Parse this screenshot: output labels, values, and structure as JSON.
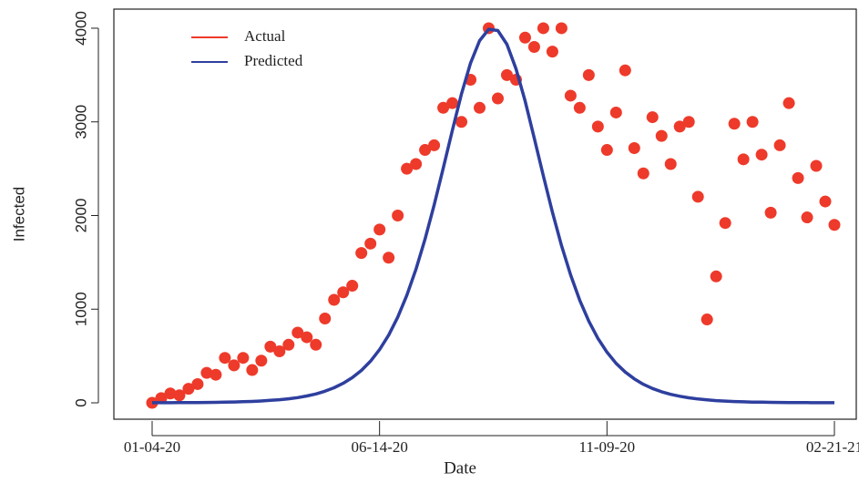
{
  "chart_data": {
    "type": "scatter-line",
    "x_label": "Date",
    "y_label": "Infected",
    "categories": [
      "01-04-20",
      null,
      null,
      null,
      null,
      null,
      null,
      null,
      null,
      null,
      null,
      null,
      null,
      null,
      null,
      null,
      null,
      null,
      null,
      null,
      null,
      null,
      null,
      null,
      null,
      "06-14-20",
      null,
      null,
      null,
      null,
      null,
      null,
      null,
      null,
      null,
      null,
      null,
      null,
      null,
      null,
      null,
      null,
      null,
      null,
      null,
      null,
      null,
      null,
      null,
      null,
      "11-09-20",
      null,
      null,
      null,
      null,
      null,
      null,
      null,
      null,
      null,
      null,
      null,
      null,
      null,
      null,
      null,
      null,
      null,
      null,
      null,
      null,
      null,
      null,
      null,
      null,
      "02-21-21"
    ],
    "series": [
      {
        "name": "Actual",
        "color": "#ee3a2a",
        "mark": "point",
        "values": [
          0,
          50,
          100,
          80,
          150,
          200,
          320,
          300,
          480,
          400,
          480,
          350,
          450,
          600,
          550,
          620,
          750,
          700,
          620,
          900,
          1100,
          1180,
          1250,
          1600,
          1700,
          1850,
          1550,
          2000,
          2500,
          2550,
          2700,
          2750,
          3150,
          3200,
          3000,
          3450,
          3150,
          4000,
          3250,
          3500,
          3450,
          3900,
          3800,
          4000,
          3750,
          4000,
          3280,
          3150,
          3500,
          2950,
          2700,
          3100,
          3550,
          2720,
          2450,
          3050,
          2850,
          2550,
          2950,
          3000,
          2200,
          890,
          1350,
          1920,
          2980,
          2600,
          3000,
          2650,
          2030,
          2750,
          3200,
          2400,
          1980,
          2530,
          2150,
          1900
        ]
      },
      {
        "name": "Predicted",
        "color": "#2e3f9e",
        "mark": "line",
        "values": [
          1,
          1,
          1,
          2,
          2,
          3,
          4,
          5,
          7,
          9,
          12,
          15,
          20,
          26,
          33,
          43,
          56,
          73,
          95,
          124,
          161,
          208,
          269,
          346,
          444,
          568,
          723,
          914,
          1147,
          1425,
          1748,
          2113,
          2507,
          2910,
          3295,
          3626,
          3867,
          3989,
          3975,
          3828,
          3566,
          3222,
          2830,
          2427,
          2037,
          1680,
          1366,
          1096,
          872,
          689,
          541,
          422,
          329,
          256,
          198,
          153,
          118,
          91,
          70,
          54,
          41,
          32,
          24,
          19,
          14,
          11,
          8,
          7,
          5,
          4,
          3,
          2,
          2,
          1,
          1,
          1
        ]
      }
    ],
    "ylim": [
      -175,
      4204
    ],
    "yticks": [
      0,
      1000,
      2000,
      3000,
      4000
    ],
    "legend": "top-left",
    "grid": false
  }
}
